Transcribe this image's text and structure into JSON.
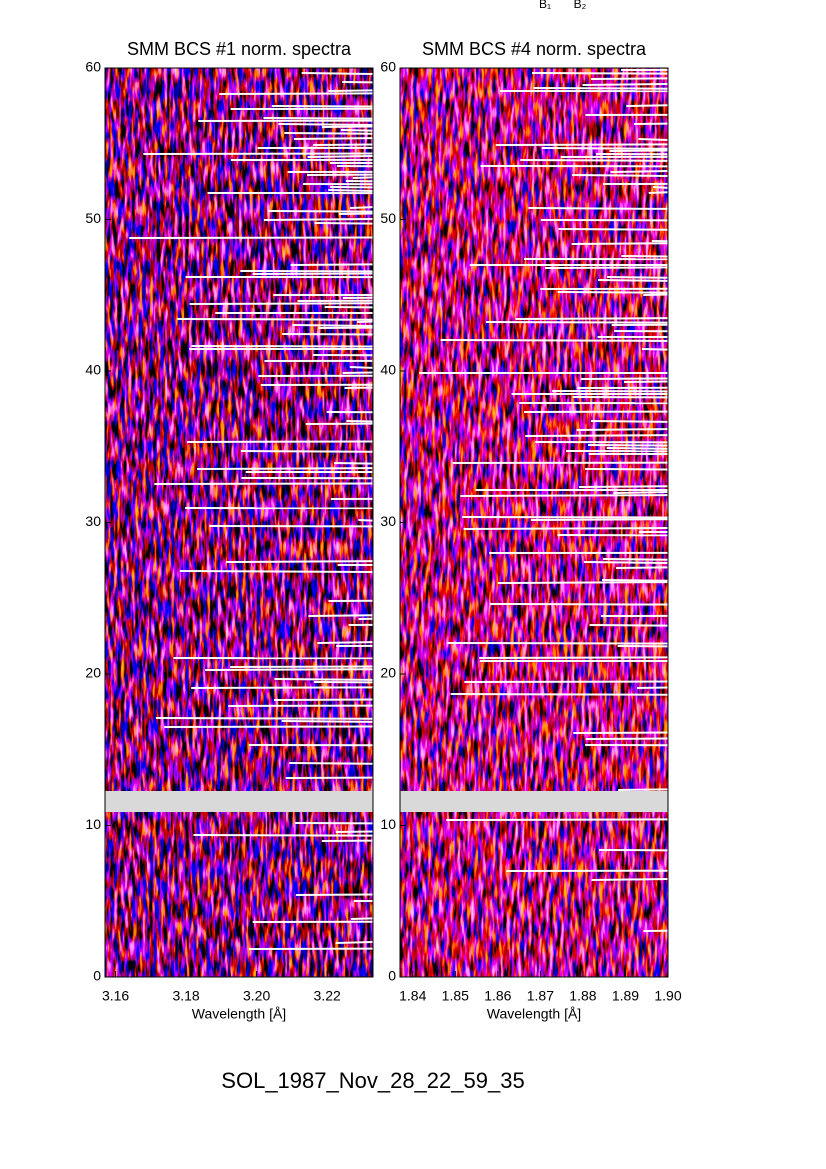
{
  "annotations": [
    "B₁",
    "B₂"
  ],
  "footer": "SOL_1987_Nov_28_22_59_35",
  "chart_data": [
    {
      "type": "heatmap",
      "title": "SMM BCS #1 norm. spectra",
      "xlabel": "Wavelength [Å]",
      "xlim": [
        3.157,
        3.233
      ],
      "xticks": [
        3.16,
        3.18,
        {
          "value": 3.2,
          "label": "3.20"
        },
        3.22
      ],
      "ylim": [
        0,
        60
      ],
      "yticks": [
        0,
        10,
        20,
        30,
        40,
        50,
        60
      ]
    },
    {
      "type": "heatmap",
      "title": "SMM BCS #4 norm. spectra",
      "xlabel": "Wavelength [Å]",
      "xlim": [
        1.837,
        1.9
      ],
      "xticks": [
        1.84,
        1.85,
        1.86,
        1.87,
        1.88,
        1.89,
        {
          "value": 1.9,
          "label": "1.90"
        }
      ],
      "ylim": [
        0,
        60
      ],
      "yticks": [
        0,
        10,
        20,
        30,
        40,
        50,
        60
      ]
    }
  ]
}
